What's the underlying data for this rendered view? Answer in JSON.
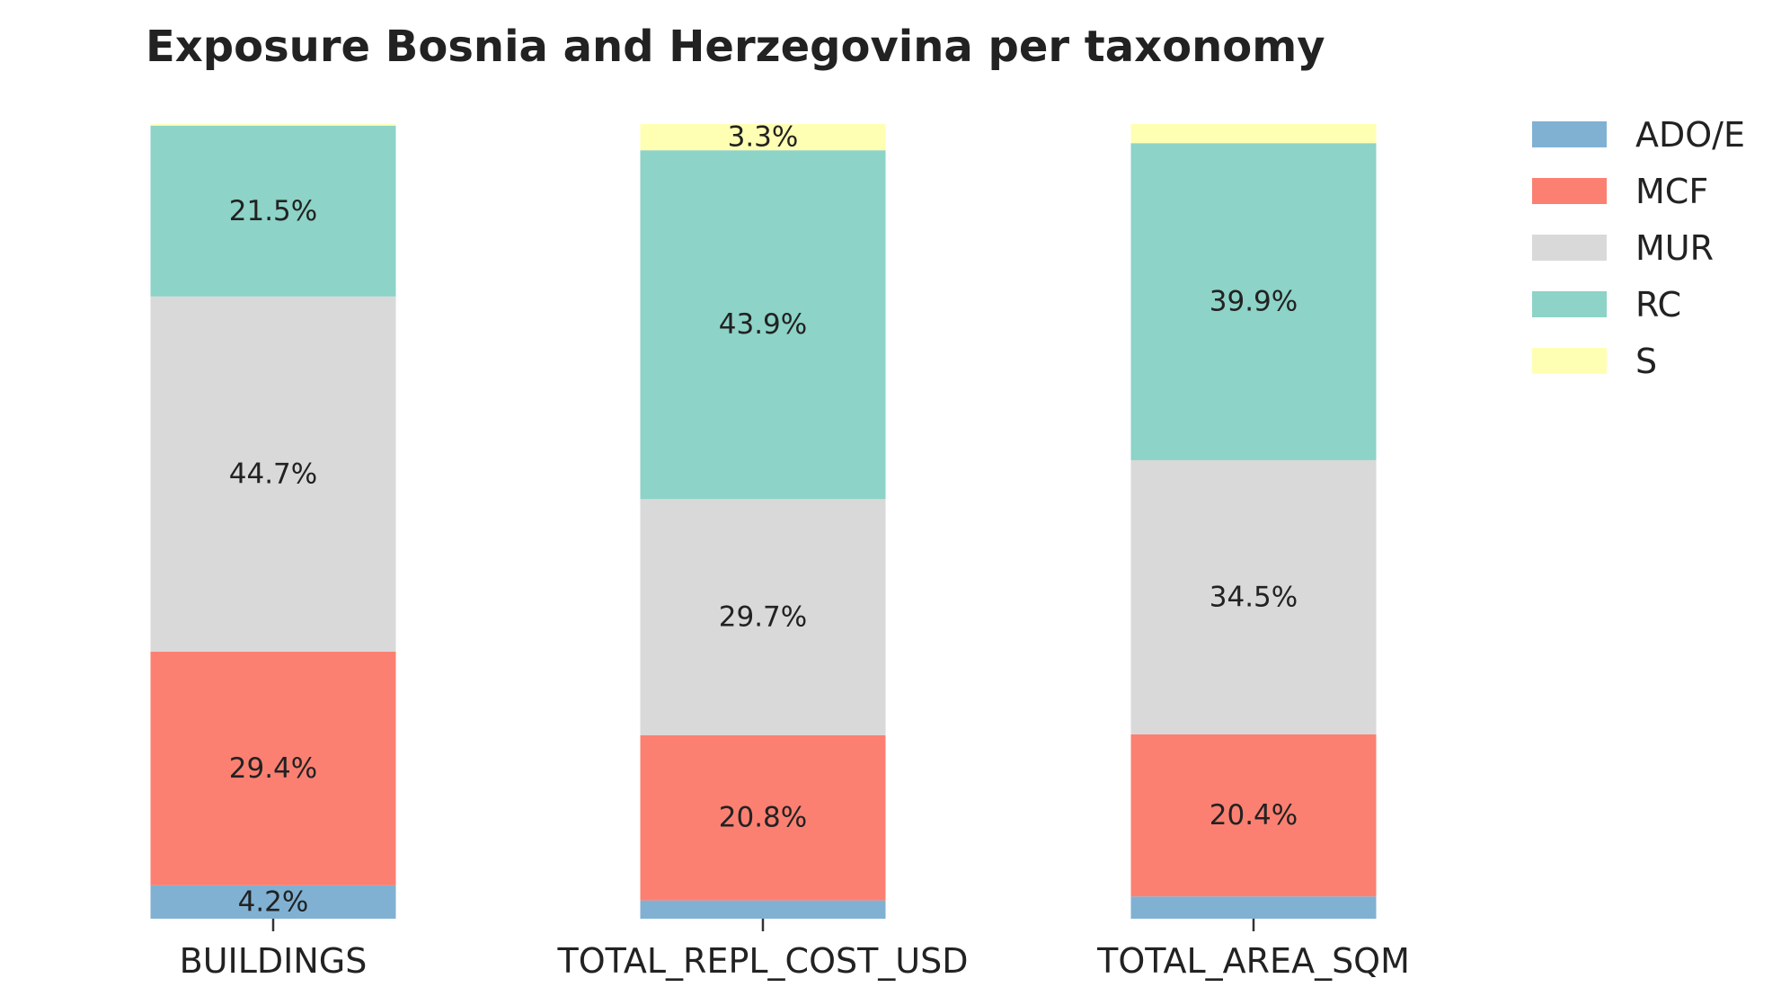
{
  "chart_data": {
    "type": "bar",
    "stacked": true,
    "title": "Exposure Bosnia and Herzegovina per taxonomy",
    "xlabel": "",
    "ylabel": "",
    "ylim": [
      0,
      100
    ],
    "grid": false,
    "legend_position": "top-right",
    "categories": [
      "BUILDINGS",
      "TOTAL_REPL_COST_USD",
      "TOTAL_AREA_SQM"
    ],
    "series": [
      {
        "name": "ADO/E",
        "color": "#80b1d3",
        "values": [
          4.2,
          2.3,
          2.8
        ],
        "labels": [
          "4.2%",
          "",
          ""
        ]
      },
      {
        "name": "MCF",
        "color": "#fb8072",
        "values": [
          29.4,
          20.8,
          20.4
        ],
        "labels": [
          "29.4%",
          "20.8%",
          "20.4%"
        ]
      },
      {
        "name": "MUR",
        "color": "#d9d9d9",
        "values": [
          44.7,
          29.7,
          34.5
        ],
        "labels": [
          "44.7%",
          "29.7%",
          "34.5%"
        ]
      },
      {
        "name": "RC",
        "color": "#8dd3c7",
        "values": [
          21.5,
          43.9,
          39.9
        ],
        "labels": [
          "21.5%",
          "43.9%",
          "39.9%"
        ]
      },
      {
        "name": "S",
        "color": "#ffffb3",
        "values": [
          0.2,
          3.3,
          2.4
        ],
        "labels": [
          "",
          "3.3%",
          ""
        ]
      }
    ]
  }
}
